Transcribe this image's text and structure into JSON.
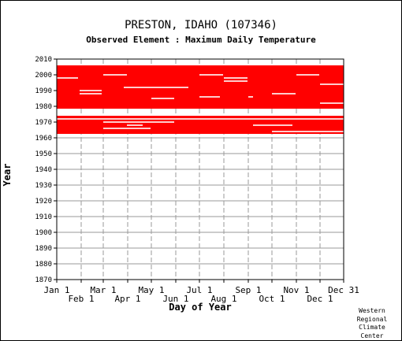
{
  "chart_data": {
    "type": "heatmap",
    "title": "PRESTON, IDAHO   (107346)",
    "subtitle": "Observed Element : Maximum Daily Temperature",
    "xlabel": "Day of Year",
    "ylabel": "Year",
    "ylim": [
      1870,
      2010
    ],
    "xlim": [
      1,
      365
    ],
    "grid": true,
    "data_color": "#ff0000",
    "y_ticks": [
      1870,
      1880,
      1890,
      1900,
      1910,
      1920,
      1930,
      1940,
      1950,
      1960,
      1970,
      1980,
      1990,
      2000,
      2010
    ],
    "x_ticks": [
      {
        "label": "Jan 1",
        "day": 1,
        "row": 1
      },
      {
        "label": "Feb 1",
        "day": 32,
        "row": 2
      },
      {
        "label": "Mar 1",
        "day": 60,
        "row": 1
      },
      {
        "label": "Apr 1",
        "day": 91,
        "row": 2
      },
      {
        "label": "May 1",
        "day": 121,
        "row": 1
      },
      {
        "label": "Jun 1",
        "day": 152,
        "row": 2
      },
      {
        "label": "Jul 1",
        "day": 182,
        "row": 1
      },
      {
        "label": "Aug 1",
        "day": 213,
        "row": 2
      },
      {
        "label": "Sep 1",
        "day": 244,
        "row": 1
      },
      {
        "label": "Oct 1",
        "day": 274,
        "row": 2
      },
      {
        "label": "Nov 1",
        "day": 305,
        "row": 1
      },
      {
        "label": "Dec 1",
        "day": 335,
        "row": 2
      },
      {
        "label": "Dec 31",
        "day": 365,
        "row": 1
      }
    ],
    "observed_periods": [
      {
        "start_year": 1962.5,
        "end_year": 1974,
        "start_day": 1,
        "end_day": 365
      },
      {
        "start_year": 1978.5,
        "end_year": 2006,
        "start_day": 1,
        "end_day": 365
      }
    ],
    "missing_gaps": [
      {
        "year": 1998,
        "start_day": 1,
        "end_day": 28
      },
      {
        "year": 1990,
        "start_day": 30,
        "end_day": 58
      },
      {
        "year": 1988,
        "start_day": 30,
        "end_day": 58
      },
      {
        "year": 2000,
        "start_day": 60,
        "end_day": 90
      },
      {
        "year": 1985,
        "start_day": 121,
        "end_day": 150
      },
      {
        "year": 1992,
        "start_day": 86,
        "end_day": 168
      },
      {
        "year": 1986,
        "start_day": 182,
        "end_day": 208
      },
      {
        "year": 2000,
        "start_day": 182,
        "end_day": 212
      },
      {
        "year": 1998,
        "start_day": 213,
        "end_day": 243
      },
      {
        "year": 1986,
        "start_day": 244,
        "end_day": 250
      },
      {
        "year": 1996,
        "start_day": 213,
        "end_day": 243
      },
      {
        "year": 2000,
        "start_day": 305,
        "end_day": 334
      },
      {
        "year": 1988,
        "start_day": 274,
        "end_day": 304
      },
      {
        "year": 1982,
        "start_day": 335,
        "end_day": 365
      },
      {
        "year": 1994,
        "start_day": 335,
        "end_day": 365
      },
      {
        "year": 1972,
        "start_day": 1,
        "end_day": 365
      },
      {
        "year": 1970,
        "start_day": 60,
        "end_day": 150
      },
      {
        "year": 1968,
        "start_day": 90,
        "end_day": 110
      },
      {
        "year": 1966,
        "start_day": 60,
        "end_day": 120
      },
      {
        "year": 1968,
        "start_day": 250,
        "end_day": 300
      },
      {
        "year": 1964,
        "start_day": 274,
        "end_day": 365
      }
    ]
  },
  "credit": [
    "Western",
    "Regional",
    "Climate",
    "Center"
  ]
}
